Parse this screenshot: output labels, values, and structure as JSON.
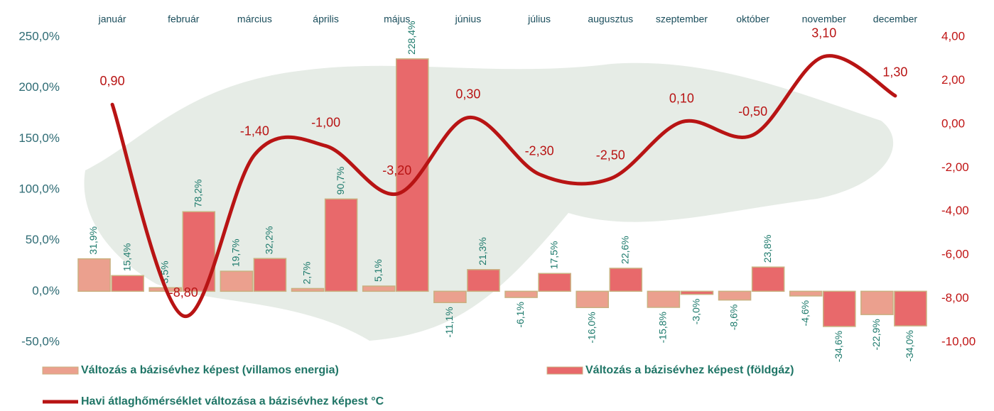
{
  "chart_data": {
    "type": "bar",
    "categories": [
      "január",
      "február",
      "március",
      "április",
      "május",
      "június",
      "július",
      "augusztus",
      "szeptember",
      "október",
      "november",
      "december"
    ],
    "series": [
      {
        "name": "Változás a bázisévhez képest (villamos energia)",
        "color": "#eba08e",
        "values": [
          31.9,
          3.5,
          19.7,
          2.7,
          5.1,
          -11.1,
          -6.1,
          -16.0,
          -15.8,
          -8.6,
          -4.6,
          -22.9
        ],
        "value_labels": [
          "31,9%",
          "3,5%",
          "19,7%",
          "2,7%",
          "5,1%",
          "-11,1%",
          "-6,1%",
          "-16,0%",
          "-15,8%",
          "-8,6%",
          "-4,6%",
          "-22,9%"
        ]
      },
      {
        "name": "Változás a bázisévhez képest (földgáz)",
        "color": "#e8696b",
        "values": [
          15.4,
          78.2,
          32.2,
          90.7,
          228.4,
          21.3,
          17.5,
          22.6,
          -3.0,
          23.8,
          -34.6,
          -34.0
        ],
        "value_labels": [
          "15,4%",
          "78,2%",
          "32,2%",
          "90,7%",
          "228,4%",
          "21,3%",
          "17,5%",
          "22,6%",
          "-3,0%",
          "23,8%",
          "-34,6%",
          "-34,0%"
        ]
      },
      {
        "name": "Havi átlaghőmérséklet változása a bázisévhez képest °C",
        "type": "line",
        "axis": "y2",
        "color": "#b81414",
        "values": [
          0.9,
          -8.8,
          -1.4,
          -1.0,
          -3.2,
          0.3,
          -2.3,
          -2.5,
          0.1,
          -0.5,
          3.1,
          1.3
        ],
        "value_labels": [
          "0,90",
          "-8,80",
          "-1,40",
          "-1,00",
          "-3,20",
          "0,30",
          "-2,30",
          "-2,50",
          "0,10",
          "-0,50",
          "3,10",
          "1,30"
        ]
      }
    ],
    "ylim": [
      -50,
      250
    ],
    "yticks": [
      {
        "value": -50,
        "label": "-50,0%"
      },
      {
        "value": 0,
        "label": "0,0%"
      },
      {
        "value": 50,
        "label": "50,0%"
      },
      {
        "value": 100,
        "label": "100,0%"
      },
      {
        "value": 150,
        "label": "150,0%"
      },
      {
        "value": 200,
        "label": "200,0%"
      },
      {
        "value": 250,
        "label": "250,0%"
      }
    ],
    "y2lim": [
      -10,
      4
    ],
    "y2ticks": [
      {
        "value": -10,
        "label": "-10,00"
      },
      {
        "value": -8,
        "label": "-8,00"
      },
      {
        "value": -6,
        "label": "-6,00"
      },
      {
        "value": -4,
        "label": "-4,00"
      },
      {
        "value": -2,
        "label": "-2,00"
      },
      {
        "value": 0,
        "label": "0,00"
      },
      {
        "value": 2,
        "label": "2,00"
      },
      {
        "value": 4,
        "label": "4,00"
      }
    ]
  }
}
